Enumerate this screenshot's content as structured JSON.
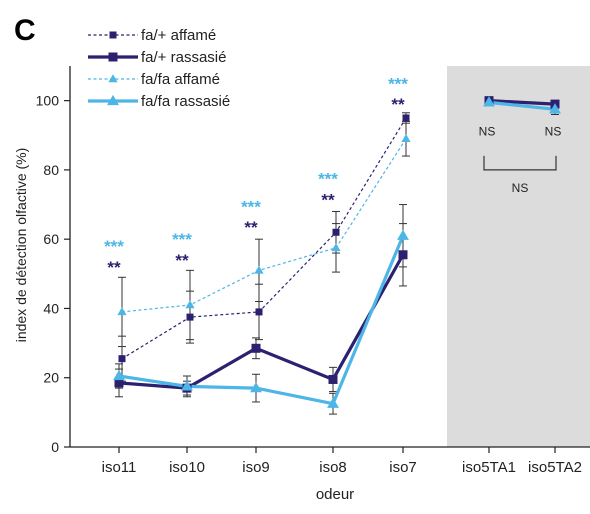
{
  "panel_letter": "C",
  "chart_data": {
    "type": "line",
    "xlabel": "odeur",
    "ylabel": "index de détection olfactive (%)",
    "categories": [
      "iso11",
      "iso10",
      "iso9",
      "iso8",
      "iso7",
      "iso5TA1",
      "iso5TA2"
    ],
    "ylim": [
      0,
      110
    ],
    "yticks": [
      0,
      20,
      40,
      60,
      80,
      100
    ],
    "grid": false,
    "legend_position": "top-left",
    "shaded_categories": [
      "iso5TA1",
      "iso5TA2"
    ],
    "shade_color": "#dcdcdc",
    "series": [
      {
        "name": "fa/+ affamé",
        "color": "#2b2170",
        "marker": "square",
        "dashed": true,
        "values": [
          25.5,
          37.5,
          39,
          62,
          95,
          null,
          null
        ],
        "errors": [
          6.5,
          7.5,
          8,
          6,
          1.5,
          null,
          null
        ]
      },
      {
        "name": "fa/+ rassasié",
        "color": "#2b2170",
        "marker": "square",
        "dashed": false,
        "values": [
          18.5,
          17,
          28.5,
          19.5,
          55.5,
          100,
          99
        ],
        "errors": [
          4,
          2,
          3,
          3.5,
          9,
          0.5,
          1
        ]
      },
      {
        "name": "fa/fa affamé",
        "color": "#4db6e6",
        "marker": "triangle",
        "dashed": true,
        "values": [
          39,
          41,
          51,
          57.5,
          89,
          null,
          null
        ],
        "errors": [
          10,
          10,
          9,
          7,
          5,
          null,
          null
        ]
      },
      {
        "name": "fa/fa rassasié",
        "color": "#4db6e6",
        "marker": "triangle",
        "dashed": false,
        "values": [
          20.5,
          17.5,
          17,
          12.5,
          61,
          99.5,
          97.5
        ],
        "errors": [
          3.5,
          3,
          4,
          3,
          9,
          0.5,
          1.5
        ]
      }
    ],
    "annotations": [
      {
        "category": "iso11",
        "text": "***",
        "color": "#4db6e6",
        "y": 58
      },
      {
        "category": "iso11",
        "text": "**",
        "color": "#2b2170",
        "y": 52
      },
      {
        "category": "iso10",
        "text": "***",
        "color": "#4db6e6",
        "y": 60
      },
      {
        "category": "iso10",
        "text": "**",
        "color": "#2b2170",
        "y": 54
      },
      {
        "category": "iso9",
        "text": "***",
        "color": "#4db6e6",
        "y": 69.5
      },
      {
        "category": "iso9",
        "text": "**",
        "color": "#2b2170",
        "y": 63.5
      },
      {
        "category": "iso8",
        "text": "***",
        "color": "#4db6e6",
        "y": 77.5
      },
      {
        "category": "iso8",
        "text": "**",
        "color": "#2b2170",
        "y": 71.5
      },
      {
        "category": "iso7",
        "text": "***",
        "color": "#4db6e6",
        "y": 105
      },
      {
        "category": "iso7",
        "text": "**",
        "color": "#2b2170",
        "y": 99
      }
    ],
    "ns_labels": [
      {
        "category": "iso5TA1",
        "text": "NS",
        "y": 90
      },
      {
        "category": "iso5TA2",
        "text": "NS",
        "y": 90
      }
    ],
    "ns_bracket_text": "NS"
  }
}
